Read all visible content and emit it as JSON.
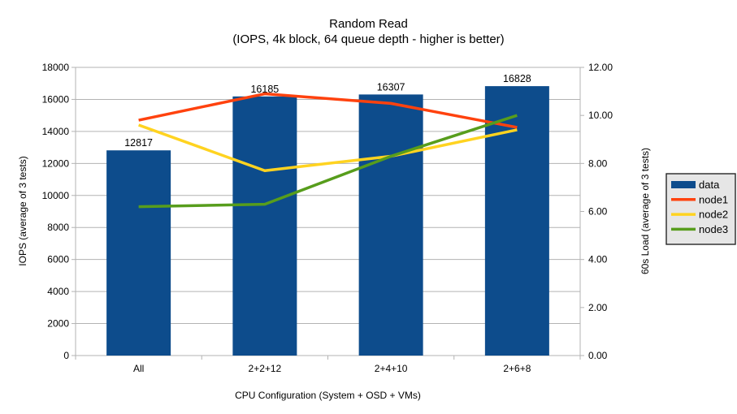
{
  "title": {
    "line1": "Random Read",
    "line2": "(IOPS, 4k block, 64 queue depth - higher is better)"
  },
  "chart_data": {
    "type": "bar+line combo (dual axis)",
    "categories": [
      "All",
      "2+2+12",
      "2+4+10",
      "2+6+8"
    ],
    "bar_series": {
      "name": "data",
      "axis": "left",
      "color": "#0d4c8c",
      "values": [
        12817,
        16185,
        16307,
        16828
      ],
      "labels": [
        "12817",
        "16185",
        "16307",
        "16828"
      ]
    },
    "line_series": [
      {
        "name": "node1",
        "axis": "right",
        "color": "#ff420e",
        "values": [
          9.8,
          10.9,
          10.5,
          9.5
        ]
      },
      {
        "name": "node2",
        "axis": "right",
        "color": "#ffd320",
        "values": [
          9.6,
          7.7,
          8.3,
          9.4
        ]
      },
      {
        "name": "node3",
        "axis": "right",
        "color": "#579d1c",
        "values": [
          6.2,
          6.3,
          8.3,
          10.0
        ]
      }
    ],
    "xlabel": "CPU Configuration (System + OSD + VMs)",
    "ylabel_left": "IOPS (average of 3 tests)",
    "ylabel_right": "60s Load (average of 3 tests)",
    "ylim_left": [
      0,
      18000
    ],
    "ylim_right": [
      0,
      12
    ],
    "left_tick_labels": [
      "0",
      "2000",
      "4000",
      "6000",
      "8000",
      "10000",
      "12000",
      "14000",
      "16000",
      "18000"
    ],
    "right_tick_labels": [
      "0.00",
      "2.00",
      "4.00",
      "6.00",
      "8.00",
      "10.00",
      "12.00"
    ],
    "grid": "horizontal gridlines on",
    "legend_position": "right",
    "legend_labels": [
      "data",
      "node1",
      "node2",
      "node3"
    ],
    "colors": {
      "grid": "#b3b3b3",
      "axis": "#b3b3b3",
      "text": "#000000",
      "legend_fill": "#e6e6e6",
      "legend_border": "#262626"
    }
  }
}
